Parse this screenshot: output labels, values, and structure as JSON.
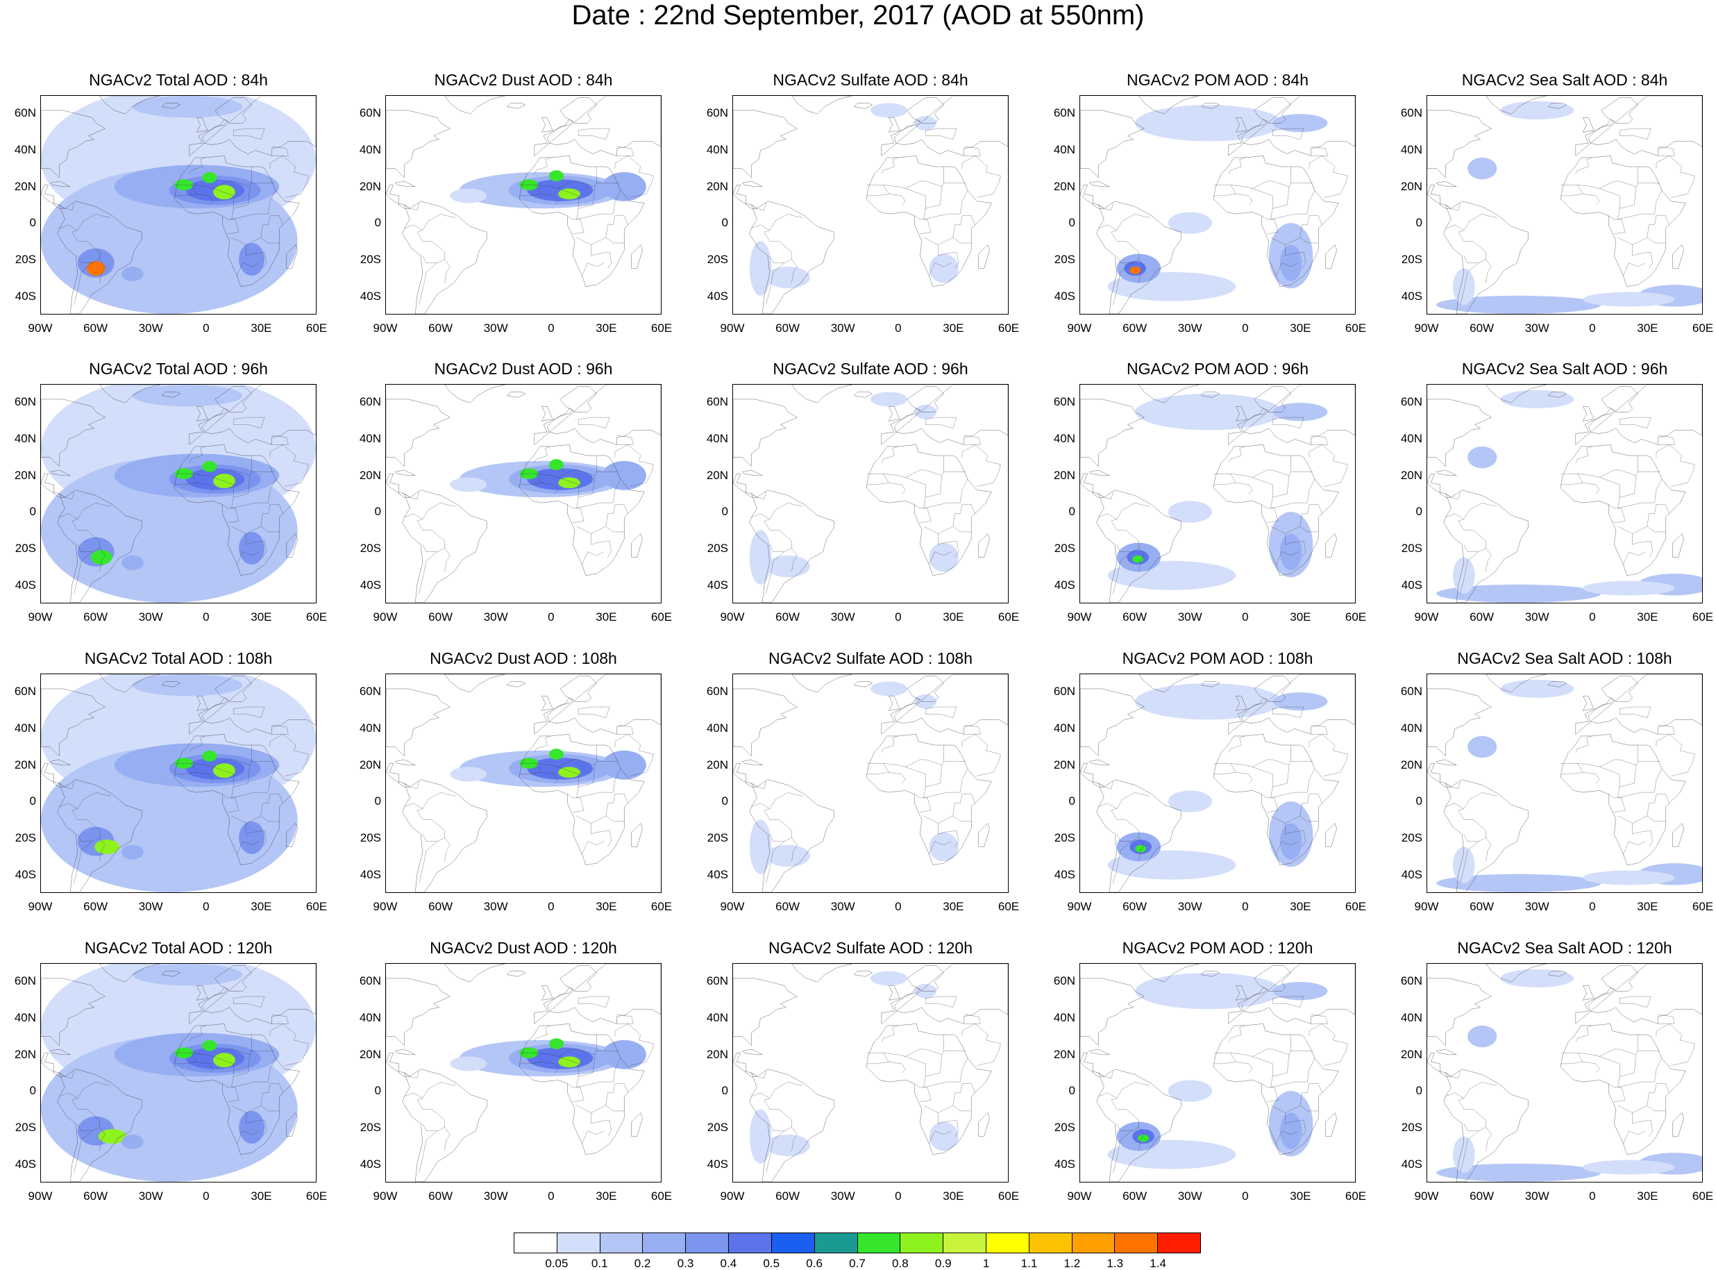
{
  "title": "Date : 22nd September, 2017 (AOD at 550nm)",
  "panels": [
    [
      "NGACv2 Total AOD : 84h",
      "NGACv2 Dust AOD : 84h",
      "NGACv2 Sulfate AOD : 84h",
      "NGACv2 POM AOD : 84h",
      "NGACv2 Sea Salt AOD : 84h"
    ],
    [
      "NGACv2 Total AOD : 96h",
      "NGACv2 Dust AOD : 96h",
      "NGACv2 Sulfate AOD : 96h",
      "NGACv2 POM AOD : 96h",
      "NGACv2 Sea Salt AOD : 96h"
    ],
    [
      "NGACv2 Total AOD : 108h",
      "NGACv2 Dust AOD : 108h",
      "NGACv2 Sulfate AOD : 108h",
      "NGACv2 POM AOD : 108h",
      "NGACv2 Sea Salt AOD : 108h"
    ],
    [
      "NGACv2 Total AOD : 120h",
      "NGACv2 Dust AOD : 120h",
      "NGACv2 Sulfate AOD : 120h",
      "NGACv2 POM AOD : 120h",
      "NGACv2 Sea Salt  AOD : 120h"
    ]
  ],
  "lat_labels": [
    "60N",
    "40N",
    "20N",
    "0",
    "20S",
    "40S"
  ],
  "lon_labels": [
    "90W",
    "60W",
    "30W",
    "0",
    "30E",
    "60E"
  ],
  "map_extent": {
    "lon": [
      -90,
      60
    ],
    "lat": [
      -50,
      70
    ]
  },
  "colorbar": {
    "labels": [
      "0.05",
      "0.1",
      "0.2",
      "0.3",
      "0.4",
      "0.5",
      "0.6",
      "0.7",
      "0.8",
      "0.9",
      "1",
      "1.1",
      "1.2",
      "1.3",
      "1.4"
    ],
    "colors": [
      "#ffffff",
      "#d3defb",
      "#b4c6f6",
      "#97aef3",
      "#7b95ef",
      "#5c74eb",
      "#1a5ff0",
      "#1b9a92",
      "#35e62c",
      "#8ef21f",
      "#c8f33d",
      "#ffff00",
      "#fdc300",
      "#ff9f00",
      "#ff7300",
      "#ff1e00"
    ]
  }
}
